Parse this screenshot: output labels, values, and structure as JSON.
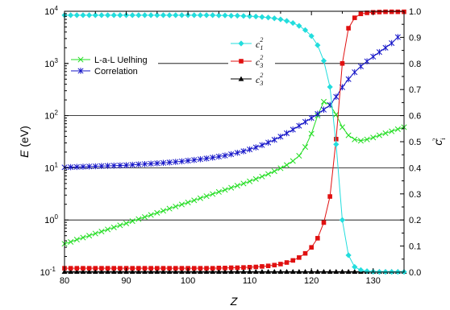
{
  "chart_data": {
    "type": "line",
    "xlabel": "Z",
    "ylabel_left": {
      "symbol": "E",
      "unit": " (eV)"
    },
    "ylabel_right": {
      "base": "c",
      "sub": "i",
      "sup": "2"
    },
    "x_ticks": [
      "80",
      "90",
      "100",
      "110",
      "120",
      "130"
    ],
    "xlim": [
      80,
      135
    ],
    "left_axis": {
      "scale": "log",
      "ylim": [
        0.1,
        10000
      ],
      "ticks": [
        {
          "base": "10",
          "exp": "-1"
        },
        {
          "base": "10",
          "exp": "0"
        },
        {
          "base": "10",
          "exp": "1"
        },
        {
          "base": "10",
          "exp": "2"
        },
        {
          "base": "10",
          "exp": "3"
        },
        {
          "base": "10",
          "exp": "4"
        }
      ]
    },
    "right_axis": {
      "scale": "linear",
      "ylim": [
        0.0,
        1.0
      ],
      "ticks": [
        "0.0",
        "0.1",
        "0.2",
        "0.3",
        "0.4",
        "0.5",
        "0.6",
        "0.7",
        "0.8",
        "0.9",
        "1.0"
      ]
    },
    "grid_right_values": [
      0.2,
      0.4,
      0.6,
      0.8
    ],
    "legends": [
      {
        "entries": [
          {
            "label": "L-a-L Uelhing",
            "color": "#22dd22",
            "marker": "x"
          },
          {
            "label": "Correlation",
            "color": "#1515c8",
            "marker": "star"
          }
        ]
      },
      {
        "entries": [
          {
            "base": "c",
            "sub": "1",
            "sup": "2",
            "color": "#22dddd",
            "marker": "diamond"
          },
          {
            "base": "c",
            "sub": "3",
            "sup": "2",
            "color": "#e01010",
            "marker": "square"
          },
          {
            "base": "c",
            "sub": "3",
            "sup": "2",
            "color": "#000000",
            "marker": "triangle"
          }
        ]
      }
    ],
    "series": [
      {
        "name": "L-a-L Uelhing",
        "axis": "left",
        "color": "#22dd22",
        "marker": "x",
        "x": [
          80,
          81,
          82,
          83,
          84,
          85,
          86,
          87,
          88,
          89,
          90,
          91,
          92,
          93,
          94,
          95,
          96,
          97,
          98,
          99,
          100,
          101,
          102,
          103,
          104,
          105,
          106,
          107,
          108,
          109,
          110,
          111,
          112,
          113,
          114,
          115,
          116,
          117,
          118,
          119,
          120,
          121,
          122,
          123,
          124,
          125,
          126,
          127,
          128,
          129,
          130,
          131,
          132,
          133,
          134,
          135
        ],
        "y": [
          0.35,
          0.38,
          0.42,
          0.46,
          0.5,
          0.55,
          0.6,
          0.66,
          0.72,
          0.79,
          0.86,
          0.95,
          1.04,
          1.14,
          1.25,
          1.37,
          1.5,
          1.65,
          1.81,
          1.98,
          2.17,
          2.38,
          2.61,
          2.86,
          3.14,
          3.45,
          3.78,
          4.15,
          4.55,
          5.0,
          5.5,
          6.1,
          6.8,
          7.6,
          8.6,
          9.8,
          11.3,
          13.5,
          17,
          25,
          45,
          100,
          185,
          160,
          105,
          60,
          42,
          35,
          33,
          35,
          38,
          42,
          46,
          50,
          55,
          60
        ]
      },
      {
        "name": "Correlation",
        "axis": "left",
        "color": "#1515c8",
        "marker": "star",
        "x": [
          80,
          81,
          82,
          83,
          84,
          85,
          86,
          87,
          88,
          89,
          90,
          91,
          92,
          93,
          94,
          95,
          96,
          97,
          98,
          99,
          100,
          101,
          102,
          103,
          104,
          105,
          106,
          107,
          108,
          109,
          110,
          111,
          112,
          113,
          114,
          115,
          116,
          117,
          118,
          119,
          120,
          121,
          122,
          123,
          124,
          125,
          126,
          127,
          128,
          129,
          130,
          131,
          132,
          133,
          134
        ],
        "y": [
          10.2,
          10.3,
          10.4,
          10.5,
          10.6,
          10.7,
          10.8,
          10.9,
          11.0,
          11.1,
          11.2,
          11.4,
          11.6,
          11.8,
          12.0,
          12.2,
          12.4,
          12.7,
          13.0,
          13.3,
          13.7,
          14.1,
          14.6,
          15.1,
          15.7,
          16.4,
          17.2,
          18.2,
          19.4,
          20.8,
          22.5,
          24.6,
          27.2,
          30.5,
          34.5,
          39.5,
          46,
          54,
          64,
          76,
          90,
          108,
          130,
          160,
          230,
          350,
          500,
          680,
          880,
          1100,
          1350,
          1650,
          2000,
          2450,
          3200
        ]
      },
      {
        "name": "c1^2",
        "axis": "right",
        "color": "#22dddd",
        "marker": "diamond",
        "x": [
          80,
          81,
          82,
          83,
          84,
          85,
          86,
          87,
          88,
          89,
          90,
          91,
          92,
          93,
          94,
          95,
          96,
          97,
          98,
          99,
          100,
          101,
          102,
          103,
          104,
          105,
          106,
          107,
          108,
          109,
          110,
          111,
          112,
          113,
          114,
          115,
          116,
          117,
          118,
          119,
          120,
          121,
          122,
          123,
          124,
          125,
          126,
          127,
          128,
          129,
          130,
          131,
          132,
          133,
          134,
          135
        ],
        "y": [
          0.985,
          0.985,
          0.985,
          0.985,
          0.985,
          0.985,
          0.985,
          0.985,
          0.985,
          0.985,
          0.985,
          0.985,
          0.985,
          0.985,
          0.985,
          0.985,
          0.985,
          0.985,
          0.985,
          0.985,
          0.985,
          0.985,
          0.985,
          0.985,
          0.985,
          0.984,
          0.984,
          0.983,
          0.983,
          0.982,
          0.981,
          0.98,
          0.978,
          0.976,
          0.973,
          0.969,
          0.963,
          0.955,
          0.944,
          0.928,
          0.905,
          0.87,
          0.81,
          0.71,
          0.49,
          0.2,
          0.065,
          0.02,
          0.008,
          0.004,
          0.002,
          0.001,
          0.001,
          0.001,
          0.001,
          0.001
        ]
      },
      {
        "name": "c3^2",
        "axis": "right",
        "color": "#e01010",
        "marker": "square",
        "x": [
          80,
          81,
          82,
          83,
          84,
          85,
          86,
          87,
          88,
          89,
          90,
          91,
          92,
          93,
          94,
          95,
          96,
          97,
          98,
          99,
          100,
          101,
          102,
          103,
          104,
          105,
          106,
          107,
          108,
          109,
          110,
          111,
          112,
          113,
          114,
          115,
          116,
          117,
          118,
          119,
          120,
          121,
          122,
          123,
          124,
          125,
          126,
          127,
          128,
          129,
          130,
          131,
          132,
          133,
          134,
          135
        ],
        "y": [
          0.015,
          0.015,
          0.015,
          0.015,
          0.015,
          0.015,
          0.015,
          0.015,
          0.015,
          0.015,
          0.015,
          0.015,
          0.015,
          0.015,
          0.015,
          0.015,
          0.015,
          0.015,
          0.015,
          0.015,
          0.015,
          0.015,
          0.015,
          0.015,
          0.015,
          0.016,
          0.016,
          0.017,
          0.017,
          0.018,
          0.019,
          0.02,
          0.022,
          0.024,
          0.027,
          0.031,
          0.037,
          0.045,
          0.056,
          0.072,
          0.095,
          0.13,
          0.19,
          0.29,
          0.51,
          0.8,
          0.935,
          0.975,
          0.99,
          0.994,
          0.996,
          0.997,
          0.998,
          0.998,
          0.998,
          0.998
        ]
      },
      {
        "name": "c3^2 (black)",
        "axis": "right",
        "color": "#000000",
        "marker": "triangle",
        "x": [
          80,
          81,
          82,
          83,
          84,
          85,
          86,
          87,
          88,
          89,
          90,
          91,
          92,
          93,
          94,
          95,
          96,
          97,
          98,
          99,
          100,
          101,
          102,
          103,
          104,
          105,
          106,
          107,
          108,
          109,
          110,
          111,
          112,
          113,
          114,
          115,
          116,
          117,
          118,
          119,
          120,
          121,
          122,
          123,
          124,
          125,
          126,
          127,
          128,
          129,
          130,
          131,
          132,
          133,
          134,
          135
        ],
        "y": [
          0.002,
          0.002,
          0.002,
          0.002,
          0.002,
          0.002,
          0.002,
          0.002,
          0.002,
          0.002,
          0.002,
          0.002,
          0.002,
          0.002,
          0.002,
          0.002,
          0.002,
          0.002,
          0.002,
          0.002,
          0.002,
          0.002,
          0.002,
          0.002,
          0.002,
          0.002,
          0.002,
          0.002,
          0.002,
          0.002,
          0.002,
          0.002,
          0.002,
          0.002,
          0.002,
          0.002,
          0.002,
          0.002,
          0.002,
          0.002,
          0.002,
          0.002,
          0.002,
          0.002,
          0.002,
          0.002,
          0.002,
          0.002,
          0.002,
          0.002,
          0.002,
          0.002,
          0.002,
          0.002,
          0.002,
          0.002
        ]
      }
    ]
  }
}
